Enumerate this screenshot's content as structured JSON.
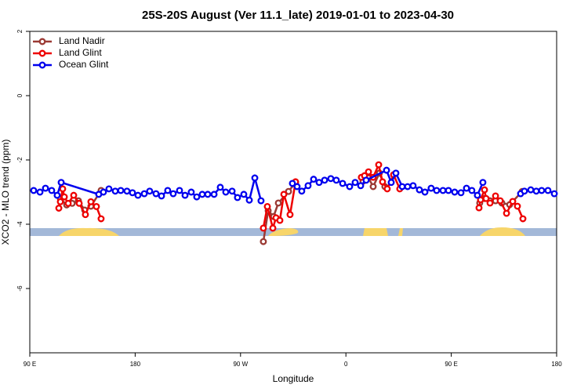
{
  "chart_data": {
    "type": "line",
    "title": "25S-20S August (Ver 11.1_late)   2019-01-01 to 2023-04-30",
    "xlabel": "Longitude",
    "ylabel": "XCO2 - MLO trend (ppm)",
    "xlim": [
      90,
      540
    ],
    "ylim": [
      -8,
      2
    ],
    "xticks": [
      {
        "value": 90,
        "label": "90 E"
      },
      {
        "value": 180,
        "label": "180"
      },
      {
        "value": 270,
        "label": "90 W"
      },
      {
        "value": 360,
        "label": "0"
      },
      {
        "value": 450,
        "label": "90 E"
      },
      {
        "value": 540,
        "label": "180"
      }
    ],
    "yticks": [
      -6,
      -4,
      -2,
      0,
      2
    ],
    "legend": "top-left",
    "series": [
      {
        "name": "Land Nadir",
        "color": "#9b3a34",
        "x": [
          116.1,
          121.5,
          126.2,
          131.5,
          136.9,
          142.2,
          150.9,
          null,
          289.5,
          293.6,
          298.2,
          302.3,
          311,
          317,
          null,
          374.6,
          379.3,
          383.3,
          388.6,
          393.3,
          null,
          474.3,
          478.4,
          483.1,
          487.8,
          493.2,
          499.9,
          510.6
        ],
        "values": [
          -3.2,
          -3.4,
          -3.35,
          -3.27,
          -3.56,
          -3.44,
          -2.95,
          null,
          -4.54,
          -3.58,
          -3.76,
          -3.34,
          -2.98,
          -2.7,
          null,
          -2.66,
          -2.56,
          -2.83,
          -2.41,
          -2.83,
          null,
          -3.34,
          -3.2,
          -3.27,
          -3.27,
          -3.34,
          -3.39,
          -2.98
        ]
      },
      {
        "name": "Land Glint",
        "color": "#ee0000",
        "x": [
          114.8,
          116.1,
          118.1,
          119.5,
          122.8,
          127.5,
          132.2,
          137.5,
          142.2,
          146.9,
          150.9,
          null,
          289.5,
          292.9,
          297.6,
          300.3,
          303.6,
          307,
          312.3,
          317,
          null,
          373.2,
          375.9,
          379.3,
          383.3,
          388,
          391.3,
          395.3,
          400.7,
          406,
          null,
          473.7,
          475,
          478.4,
          479.7,
          483.1,
          487.8,
          491.8,
          497.2,
          502.5,
          506.5,
          511.2
        ],
        "values": [
          -3.5,
          -3.3,
          -2.9,
          -3.15,
          -3.35,
          -3.1,
          -3.35,
          -3.7,
          -3.3,
          -3.45,
          -3.83,
          null,
          -4.12,
          -3.45,
          -4.12,
          -3.8,
          -3.88,
          -3.07,
          -3.7,
          -2.68,
          null,
          -2.54,
          -2.49,
          -2.37,
          -2.54,
          -2.15,
          -2.68,
          -2.9,
          -2.46,
          -2.9,
          null,
          -3.49,
          -3.24,
          -2.93,
          -3.2,
          -3.34,
          -3.12,
          -3.27,
          -3.66,
          -3.29,
          -3.44,
          -3.83
        ]
      },
      {
        "name": "Ocean Glint",
        "color": "#0000ee",
        "x": [
          93.3,
          98.7,
          103.4,
          108.7,
          113.4,
          116.8,
          148.9,
          152.9,
          157.6,
          163,
          167.7,
          173,
          177.7,
          182.4,
          187.8,
          192.4,
          197.8,
          202.5,
          207.8,
          212.5,
          217.9,
          222.6,
          227.9,
          232.6,
          237.3,
          242,
          247.4,
          252.7,
          257.4,
          262.8,
          267.4,
          272.8,
          277.5,
          282.2,
          287.5,
          null,
          314.3,
          318.3,
          322.3,
          327.7,
          332.4,
          337.1,
          341.8,
          347.1,
          351.8,
          357.2,
          363.2,
          367.9,
          372.6,
          377.3,
          394.7,
          398.7,
          402.7,
          408.1,
          412.7,
          417.4,
          422.8,
          427.5,
          432.8,
          437.5,
          442.9,
          447.6,
          452.9,
          458.3,
          463,
          467.6,
          472.3,
          477,
          null,
          509.2,
          512.5,
          517.9,
          522.6,
          527.2,
          532.6,
          538
        ],
        "values": [
          -2.95,
          -3.0,
          -2.88,
          -2.95,
          -3.1,
          -2.7,
          -3.07,
          -3.0,
          -2.9,
          -2.97,
          -2.95,
          -2.97,
          -3.02,
          -3.1,
          -3.05,
          -2.97,
          -3.05,
          -3.12,
          -2.95,
          -3.05,
          -2.95,
          -3.1,
          -3.0,
          -3.15,
          -3.07,
          -3.07,
          -3.07,
          -2.85,
          -3.0,
          -2.97,
          -3.17,
          -3.07,
          -3.25,
          -2.56,
          -3.27,
          null,
          -2.73,
          -2.83,
          -2.97,
          -2.8,
          -2.6,
          -2.7,
          -2.63,
          -2.58,
          -2.63,
          -2.73,
          -2.83,
          -2.7,
          -2.8,
          -2.63,
          -2.32,
          -2.7,
          -2.41,
          -2.83,
          -2.83,
          -2.8,
          -2.93,
          -3.0,
          -2.88,
          -2.95,
          -2.95,
          -2.95,
          -3.0,
          -3.02,
          -2.88,
          -2.95,
          -3.1,
          -2.7,
          null,
          -3.05,
          -2.97,
          -2.93,
          -2.97,
          -2.95,
          -2.95,
          -3.05
        ]
      }
    ]
  }
}
